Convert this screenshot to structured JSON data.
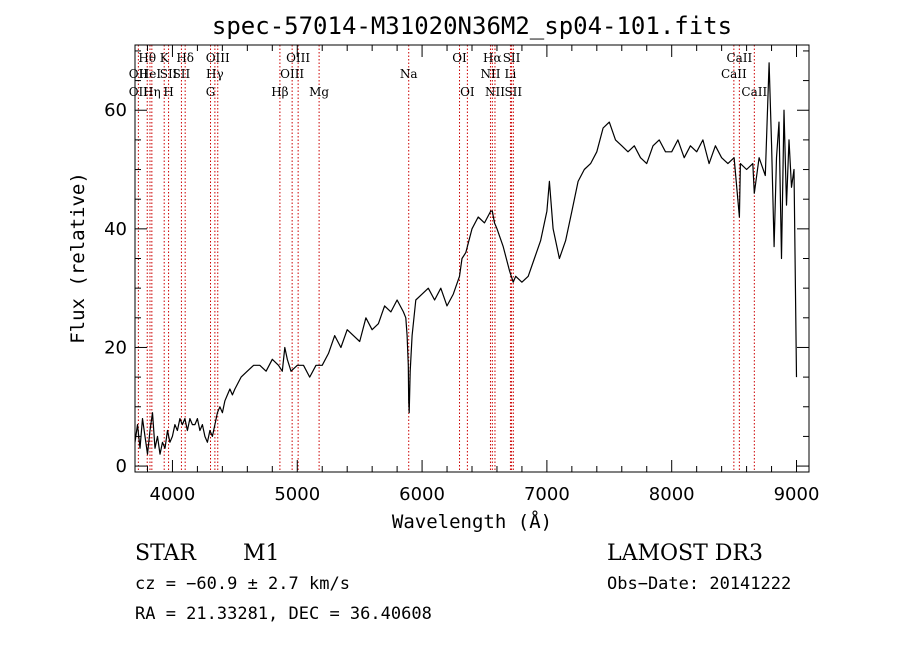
{
  "chart_data": {
    "type": "line",
    "title": "spec-57014-M31020N36M2_sp04-101.fits",
    "xlabel": "Wavelength (Å)",
    "ylabel": "Flux (relative)",
    "xlim": [
      3700,
      9100
    ],
    "ylim": [
      -1,
      71
    ],
    "xticks": [
      4000,
      5000,
      6000,
      7000,
      8000,
      9000
    ],
    "yticks": [
      0,
      20,
      40,
      60
    ],
    "grid": false,
    "line_color": "#000000",
    "marker_line_color": "#cc0000",
    "series": [
      {
        "x": [
          3700,
          3720,
          3740,
          3760,
          3780,
          3800,
          3820,
          3840,
          3860,
          3880,
          3900,
          3920,
          3940,
          3960,
          3980,
          4000,
          4020,
          4040,
          4060,
          4080,
          4100,
          4120,
          4140,
          4160,
          4180,
          4200,
          4220,
          4240,
          4260,
          4280,
          4300,
          4320,
          4340,
          4360,
          4380,
          4400,
          4420,
          4440,
          4460,
          4480,
          4500,
          4550,
          4600,
          4650,
          4700,
          4750,
          4800,
          4850,
          4880,
          4900,
          4920,
          4950,
          5000,
          5050,
          5100,
          5150,
          5200,
          5250,
          5300,
          5350,
          5400,
          5450,
          5500,
          5550,
          5600,
          5650,
          5700,
          5750,
          5800,
          5850,
          5870,
          5880,
          5890,
          5893,
          5897,
          5905,
          5920,
          5950,
          6000,
          6050,
          6100,
          6150,
          6200,
          6250,
          6300,
          6320,
          6350,
          6400,
          6450,
          6500,
          6550,
          6563,
          6580,
          6600,
          6650,
          6700,
          6730,
          6750,
          6800,
          6850,
          6900,
          6950,
          7000,
          7020,
          7050,
          7100,
          7150,
          7200,
          7250,
          7300,
          7350,
          7400,
          7450,
          7500,
          7550,
          7600,
          7650,
          7700,
          7750,
          7800,
          7850,
          7900,
          7950,
          8000,
          8050,
          8100,
          8150,
          8200,
          8250,
          8300,
          8350,
          8400,
          8450,
          8500,
          8542,
          8550,
          8600,
          8650,
          8662,
          8700,
          8750,
          8780,
          8800,
          8820,
          8840,
          8860,
          8880,
          8900,
          8920,
          8940,
          8960,
          8980,
          9000
        ],
        "y": [
          4,
          7,
          3,
          8,
          5,
          2,
          6,
          9,
          3,
          5,
          2,
          4,
          3,
          6,
          4,
          5,
          7,
          6,
          8,
          7,
          8,
          6,
          8,
          7,
          7,
          8,
          6,
          7,
          5,
          4,
          6,
          5,
          7,
          9,
          10,
          9,
          11,
          12,
          13,
          12,
          13,
          15,
          16,
          17,
          17,
          16,
          18,
          17,
          16,
          20,
          18,
          16,
          17,
          17,
          15,
          17,
          17,
          19,
          22,
          20,
          23,
          22,
          21,
          25,
          23,
          24,
          27,
          26,
          28,
          26,
          25,
          22,
          17,
          11,
          9,
          16,
          22,
          28,
          29,
          30,
          28,
          30,
          27,
          29,
          32,
          35,
          36,
          40,
          42,
          41,
          43,
          43,
          41,
          40,
          37,
          33,
          31,
          32,
          31,
          32,
          35,
          38,
          43,
          48,
          40,
          35,
          38,
          43,
          48,
          50,
          51,
          53,
          57,
          58,
          55,
          54,
          53,
          54,
          52,
          51,
          54,
          55,
          53,
          53,
          55,
          52,
          54,
          53,
          55,
          51,
          54,
          52,
          51,
          52,
          42,
          51,
          50,
          51,
          46,
          52,
          49,
          68,
          54,
          37,
          52,
          58,
          35,
          60,
          44,
          55,
          47,
          50,
          15
        ]
      }
    ],
    "line_markers": [
      {
        "label": "Hθ",
        "x": 3798,
        "row": 1
      },
      {
        "label": "OII",
        "x": 3727,
        "row": 2
      },
      {
        "label": "OII",
        "x": 3727,
        "row": 3
      },
      {
        "label": "HeI",
        "x": 3820,
        "row": 2
      },
      {
        "label": "Hη",
        "x": 3835,
        "row": 3
      },
      {
        "label": "K",
        "x": 3934,
        "row": 1
      },
      {
        "label": "SII",
        "x": 3969,
        "row": 2
      },
      {
        "label": "H",
        "x": 3969,
        "row": 3
      },
      {
        "label": "Hδ",
        "x": 4102,
        "row": 1
      },
      {
        "label": "SII",
        "x": 4072,
        "row": 2
      },
      {
        "label": "OIII",
        "x": 4363,
        "row": 1
      },
      {
        "label": "Hγ",
        "x": 4340,
        "row": 2
      },
      {
        "label": "G",
        "x": 4305,
        "row": 3
      },
      {
        "label": "OIII",
        "x": 5007,
        "row": 1
      },
      {
        "label": "OIII",
        "x": 4959,
        "row": 2
      },
      {
        "label": "Hβ",
        "x": 4861,
        "row": 3
      },
      {
        "label": "Mg",
        "x": 5175,
        "row": 3
      },
      {
        "label": "Na",
        "x": 5893,
        "row": 2
      },
      {
        "label": "OI",
        "x": 6300,
        "row": 1
      },
      {
        "label": "OI",
        "x": 6363,
        "row": 3
      },
      {
        "label": "Hα",
        "x": 6563,
        "row": 1
      },
      {
        "label": "SII",
        "x": 6717,
        "row": 1
      },
      {
        "label": "NII",
        "x": 6548,
        "row": 2
      },
      {
        "label": "Li",
        "x": 6708,
        "row": 2
      },
      {
        "label": "NII",
        "x": 6584,
        "row": 3
      },
      {
        "label": "SII",
        "x": 6731,
        "row": 3
      },
      {
        "label": "CaII",
        "x": 8542,
        "row": 1
      },
      {
        "label": "CaII",
        "x": 8498,
        "row": 2
      },
      {
        "label": "CaII",
        "x": 8662,
        "row": 3
      }
    ]
  },
  "info": {
    "object_class": "STAR",
    "subclass": "M1",
    "survey": "LAMOST DR3",
    "cz": "cz = −60.9 ± 2.7 km/s",
    "obs_date": "Obs−Date: 20141222",
    "coords": "RA =  21.33281, DEC =  36.40608"
  }
}
